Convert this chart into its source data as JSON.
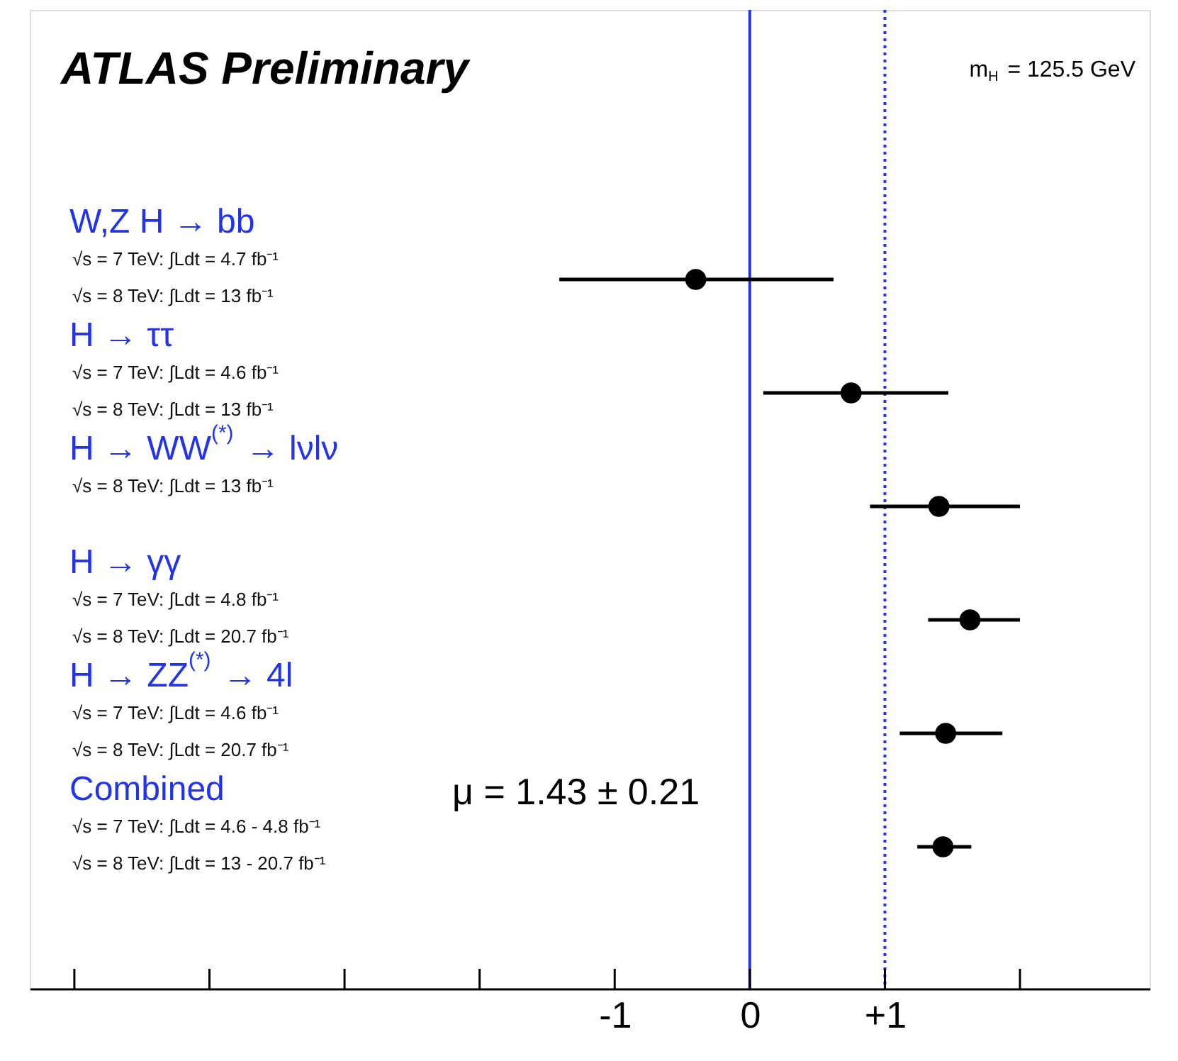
{
  "chart_data": {
    "type": "scatter",
    "orientation": "horizontal",
    "title": "ATLAS Preliminary",
    "categories": [
      "W,Z H → bb",
      "H → ττ",
      "H → WW$^{(*)}$ → lνlν",
      "H → γγ",
      "H → ZZ$^{(*)}$ → 4l",
      "Combined"
    ],
    "series": [
      {
        "color": "#000000",
        "values": [
          -0.4,
          0.75,
          1.4,
          1.63,
          1.45,
          1.43
        ],
        "errors": [
          [
            -1.41,
            0.62
          ],
          [
            0.1,
            1.47
          ],
          [
            0.89,
            2.0
          ],
          [
            1.32,
            2.0
          ],
          [
            1.11,
            1.87
          ],
          [
            1.24,
            1.64
          ]
        ]
      }
    ],
    "marker": "circle",
    "xlim": [
      -5.33,
      2.96
    ],
    "xticks": [
      -1,
      0,
      {
        "value": 1,
        "label": "+1"
      }
    ],
    "ref_lines": [
      {
        "axis": "x",
        "value": 0,
        "color": "#2233ee",
        "line_style": "solid"
      },
      {
        "axis": "x",
        "value": 1,
        "color": "#2233ee",
        "line_style": "dotted"
      }
    ],
    "annotations": [
      "m$_{H}$ = 125.5 GeV",
      "μ = 1.43 ± 0.21",
      "√s = 7 TeV: ∫Ldt = 4.7 fb⁻¹",
      "√s = 8 TeV: ∫Ldt = 13 fb⁻¹",
      "√s = 7 TeV: ∫Ldt = 4.6 fb⁻¹",
      "√s = 8 TeV: ∫Ldt = 13 fb⁻¹",
      "√s = 8 TeV: ∫Ldt = 13 fb⁻¹",
      "√s = 7 TeV: ∫Ldt = 4.8 fb⁻¹",
      "√s = 8 TeV: ∫Ldt = 20.7 fb⁻¹",
      "√s = 7 TeV: ∫Ldt = 4.6 fb⁻¹",
      "√s = 8 TeV: ∫Ldt = 20.7 fb⁻¹",
      "√s = 7 TeV: ∫Ldt = 4.6 - 4.8 fb⁻¹",
      "√s = 8 TeV: ∫Ldt = 13 - 20.7 fb⁻¹"
    ],
    "grid": false
  }
}
